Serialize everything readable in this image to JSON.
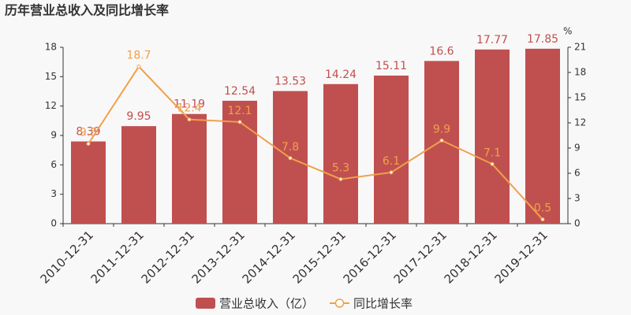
{
  "chart_data": {
    "type": "bar",
    "title": "历年营业总收入及同比增长率",
    "categories": [
      "2010-12-31",
      "2011-12-31",
      "2012-12-31",
      "2013-12-31",
      "2014-12-31",
      "2015-12-31",
      "2016-12-31",
      "2017-12-31",
      "2018-12-31",
      "2019-12-31"
    ],
    "series": [
      {
        "name": "营业总收入（亿）",
        "type": "bar",
        "color": "#c0504f",
        "values": [
          8.39,
          9.95,
          11.19,
          12.54,
          13.53,
          14.24,
          15.11,
          16.6,
          17.77,
          17.85
        ]
      },
      {
        "name": "同比增长率",
        "type": "line",
        "axis": "y2",
        "color": "#f0a04b",
        "values": [
          9.5,
          18.7,
          12.4,
          12.1,
          7.8,
          5.3,
          6.1,
          9.9,
          7.1,
          0.5
        ]
      }
    ],
    "ylim": [
      0,
      18
    ],
    "yticks": [
      0,
      3,
      6,
      9,
      12,
      15,
      18
    ],
    "y2lim": [
      0,
      21
    ],
    "y2ticks": [
      0,
      3,
      6,
      9,
      12,
      15,
      18,
      21
    ],
    "y2_label": "%"
  }
}
